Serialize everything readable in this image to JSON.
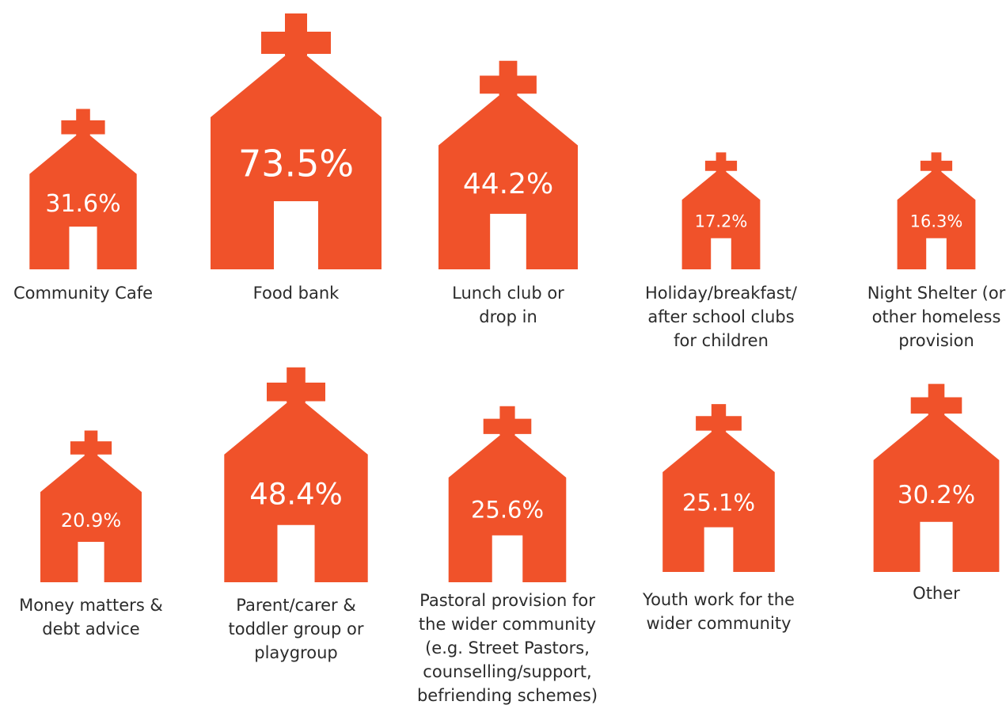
{
  "accent_color": "#F0522A",
  "chart_data": {
    "type": "pictogram",
    "icon": "church-icon",
    "unit": "%",
    "items": [
      {
        "label": "Community Cafe",
        "value": 31.6,
        "display": "31.6%"
      },
      {
        "label": "Food bank",
        "value": 73.5,
        "display": "73.5%"
      },
      {
        "label": "Lunch club or drop in",
        "value": 44.2,
        "display": "44.2%"
      },
      {
        "label": "Holiday/breakfast/ after school clubs for children",
        "value": 17.2,
        "display": "17.2%"
      },
      {
        "label": "Night Shelter (or other homeless provision",
        "value": 16.3,
        "display": "16.3%"
      },
      {
        "label": "Money matters & debt advice",
        "value": 20.9,
        "display": "20.9%"
      },
      {
        "label": "Parent/carer & toddler group or playgroup",
        "value": 48.4,
        "display": "48.4%"
      },
      {
        "label": "Pastoral provision for the wider community (e.g. Street Pastors, counselling/support, befriending schemes)",
        "value": 25.6,
        "display": "25.6%"
      },
      {
        "label": "Youth work for the wider community",
        "value": 25.1,
        "display": "25.1%"
      },
      {
        "label": "Other",
        "value": 30.2,
        "display": "30.2%"
      }
    ]
  }
}
